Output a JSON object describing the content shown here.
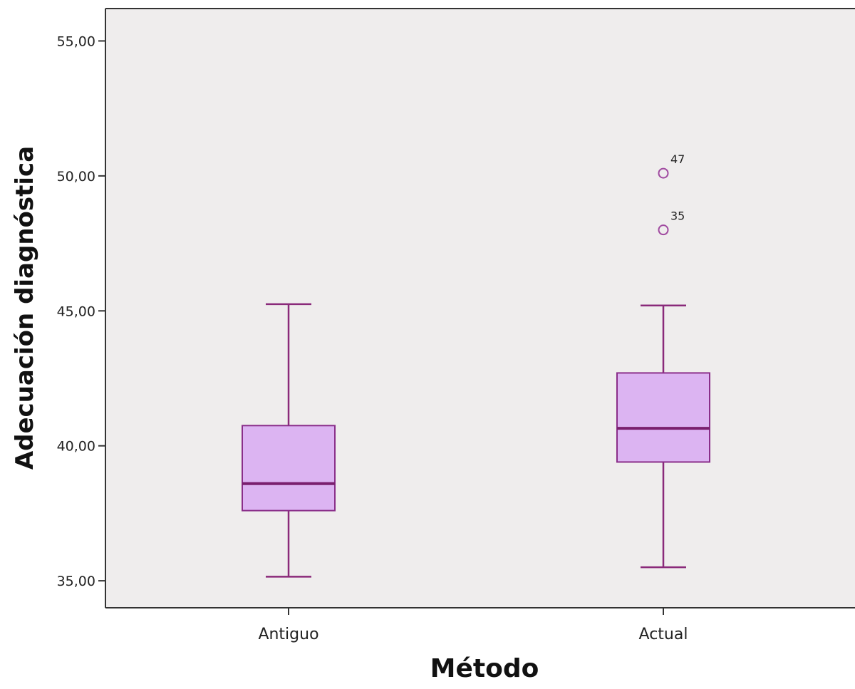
{
  "chart_data": {
    "type": "boxplot",
    "xlabel": "Método",
    "ylabel": "Adecuación diagnóstica",
    "ylim": [
      34,
      56.2
    ],
    "yticks": [
      35,
      40,
      45,
      50,
      55
    ],
    "ytick_labels": [
      "35,00",
      "40,00",
      "45,00",
      "50,00",
      "55,00"
    ],
    "categories": [
      "Antiguo",
      "Actual"
    ],
    "boxes": [
      {
        "category": "Antiguo",
        "whisker_low": 35.15,
        "q1": 37.6,
        "median": 38.6,
        "q3": 40.75,
        "whisker_high": 45.25,
        "outliers": []
      },
      {
        "category": "Actual",
        "whisker_low": 35.5,
        "q1": 39.4,
        "median": 40.65,
        "q3": 42.7,
        "whisker_high": 45.2,
        "outliers": [
          {
            "value": 50.1,
            "label": "47"
          },
          {
            "value": 48.0,
            "label": "35"
          }
        ]
      }
    ],
    "colors": {
      "background": "#efeded",
      "box_fill": "#dcb4f2",
      "box_stroke": "#8a2e8a",
      "median": "#7a1f6e",
      "whisker": "#8a2a7a",
      "outlier": "#a04aa0"
    }
  }
}
